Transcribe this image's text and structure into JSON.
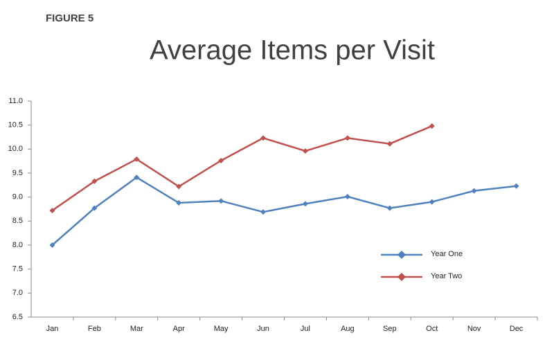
{
  "chart_data": {
    "type": "line",
    "label": "FIGURE 5",
    "title": "Average Items per Visit",
    "categories": [
      "Jan",
      "Feb",
      "Mar",
      "Apr",
      "May",
      "Jun",
      "Jul",
      "Aug",
      "Sep",
      "Oct",
      "Nov",
      "Dec"
    ],
    "series": [
      {
        "name": "Year One",
        "color": "#4f81bd",
        "values": [
          8.0,
          8.77,
          9.41,
          8.88,
          8.92,
          8.69,
          8.86,
          9.01,
          8.77,
          8.9,
          9.13,
          9.23
        ]
      },
      {
        "name": "Year Two",
        "color": "#c0504d",
        "values": [
          8.72,
          9.33,
          9.79,
          9.22,
          9.76,
          10.23,
          9.96,
          10.23,
          10.11,
          10.48,
          null,
          null
        ]
      }
    ],
    "ylim": [
      6.5,
      11.0
    ],
    "yticks": [
      6.5,
      {
        "value": 7,
        "label": "7.0"
      },
      7.5,
      {
        "value": 8,
        "label": "8.0"
      },
      8.5,
      {
        "value": 9,
        "label": "9.0"
      },
      9.5,
      {
        "value": 10,
        "label": "10.0"
      },
      10.5,
      {
        "value": 11,
        "label": "11.0"
      }
    ],
    "grid": false
  }
}
